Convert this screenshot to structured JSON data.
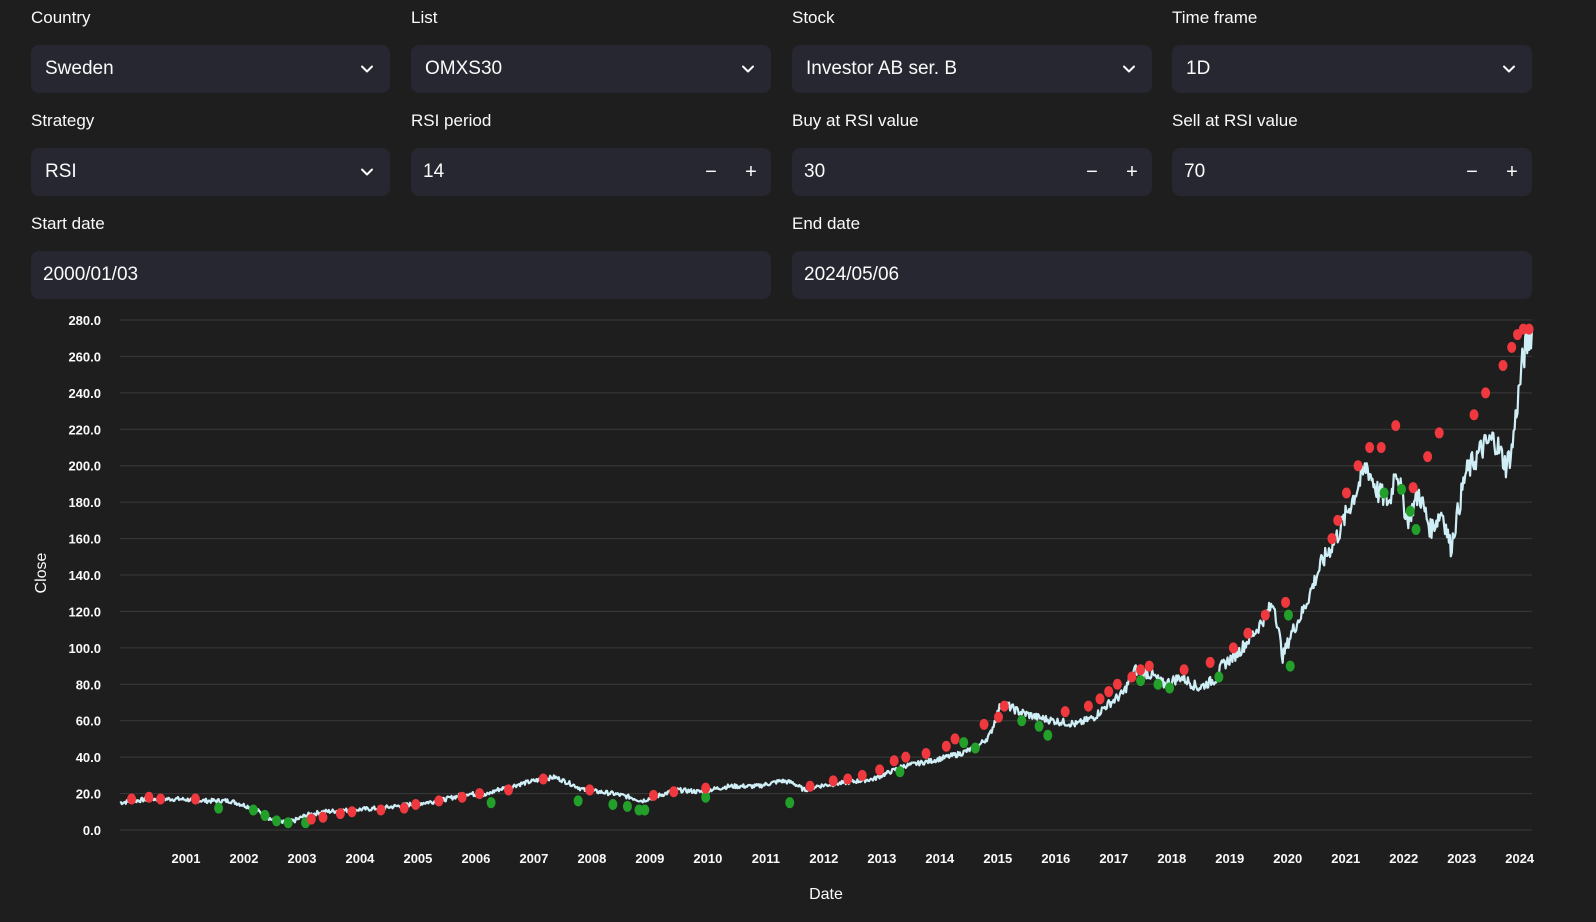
{
  "filters": {
    "country": {
      "label": "Country",
      "value": "Sweden"
    },
    "list": {
      "label": "List",
      "value": "OMXS30"
    },
    "stock": {
      "label": "Stock",
      "value": "Investor AB ser. B"
    },
    "timeframe": {
      "label": "Time frame",
      "value": "1D"
    },
    "strategy": {
      "label": "Strategy",
      "value": "RSI"
    },
    "rsi_period": {
      "label": "RSI period",
      "value": "14"
    },
    "buy_rsi": {
      "label": "Buy at RSI value",
      "value": "30"
    },
    "sell_rsi": {
      "label": "Sell at RSI value",
      "value": "70"
    },
    "start_date": {
      "label": "Start date",
      "value": "2000/01/03"
    },
    "end_date": {
      "label": "End date",
      "value": "2024/05/06"
    },
    "minus_symbol": "−",
    "plus_symbol": "+"
  },
  "colors": {
    "background": "#1e1e1e",
    "input_bg": "#262730",
    "line": "#cfeef5",
    "buy": "#22a02a",
    "sell": "#f0393e",
    "grid": "#3a3a3a"
  },
  "chart_data": {
    "type": "line",
    "title": "",
    "xlabel": "Date",
    "ylabel": "Close",
    "xlim": [
      2000.0,
      2024.35
    ],
    "ylim": [
      0,
      280
    ],
    "yticks": [
      0,
      20,
      40,
      60,
      80,
      100,
      120,
      140,
      160,
      180,
      200,
      220,
      240,
      260,
      280
    ],
    "ytick_labels": [
      "0.0",
      "20.0",
      "40.0",
      "60.0",
      "80.0",
      "100.0",
      "120.0",
      "140.0",
      "160.0",
      "180.0",
      "200.0",
      "220.0",
      "240.0",
      "260.0",
      "280.0"
    ],
    "xticks": [
      2001,
      2002,
      2003,
      2004,
      2005,
      2006,
      2007,
      2008,
      2009,
      2010,
      2011,
      2012,
      2013,
      2014,
      2015,
      2016,
      2017,
      2018,
      2019,
      2020,
      2021,
      2022,
      2023,
      2024
    ],
    "xtick_labels": [
      "2001",
      "2002",
      "2003",
      "2004",
      "2005",
      "2006",
      "2007",
      "2008",
      "2009",
      "2010",
      "2011",
      "2012",
      "2013",
      "2014",
      "2015",
      "2016",
      "2017",
      "2018",
      "2019",
      "2020",
      "2021",
      "2022",
      "2023",
      "2024"
    ],
    "series": [
      {
        "name": "Close",
        "x": [
          2000.0,
          2000.5,
          2001.0,
          2001.5,
          2001.9,
          2002.3,
          2002.6,
          2002.8,
          2003.0,
          2003.2,
          2003.5,
          2004.0,
          2004.5,
          2005.0,
          2005.5,
          2006.0,
          2006.3,
          2006.5,
          2007.0,
          2007.3,
          2007.5,
          2007.8,
          2008.0,
          2008.5,
          2008.8,
          2009.0,
          2009.3,
          2009.6,
          2010.0,
          2010.5,
          2011.0,
          2011.4,
          2011.6,
          2011.8,
          2012.0,
          2012.5,
          2013.0,
          2013.5,
          2014.0,
          2014.5,
          2014.8,
          2015.0,
          2015.2,
          2015.5,
          2015.8,
          2016.1,
          2016.5,
          2016.8,
          2017.0,
          2017.3,
          2017.5,
          2017.8,
          2018.0,
          2018.3,
          2018.6,
          2018.9,
          2019.0,
          2019.3,
          2019.6,
          2019.9,
          2020.05,
          2020.2,
          2020.4,
          2020.7,
          2021.0,
          2021.3,
          2021.5,
          2021.7,
          2021.9,
          2022.0,
          2022.2,
          2022.4,
          2022.6,
          2022.8,
          2022.95,
          2023.2,
          2023.5,
          2023.7,
          2023.9,
          2024.0,
          2024.1,
          2024.2,
          2024.35
        ],
        "values": [
          15,
          17,
          17,
          16,
          16,
          12,
          6,
          4,
          5,
          8,
          10,
          11,
          12,
          14,
          16,
          20,
          19,
          22,
          26,
          28,
          29,
          25,
          22,
          20,
          18,
          16,
          19,
          22,
          21,
          24,
          24,
          27,
          26,
          22,
          24,
          26,
          28,
          35,
          38,
          42,
          46,
          52,
          70,
          65,
          62,
          60,
          58,
          62,
          68,
          75,
          88,
          85,
          80,
          84,
          78,
          83,
          90,
          98,
          110,
          125,
          95,
          108,
          120,
          145,
          162,
          185,
          200,
          185,
          180,
          200,
          170,
          185,
          165,
          175,
          155,
          195,
          210,
          215,
          200,
          208,
          235,
          260,
          275
        ]
      }
    ],
    "buy_signals": {
      "name": "Buy",
      "x": [
        2001.7,
        2002.3,
        2002.5,
        2002.7,
        2002.9,
        2003.2,
        2006.4,
        2007.9,
        2008.5,
        2008.75,
        2008.95,
        2009.05,
        2010.1,
        2011.55,
        2013.45,
        2014.55,
        2014.75,
        2015.55,
        2015.85,
        2016.0,
        2017.6,
        2017.9,
        2018.1,
        2018.95,
        2020.15,
        2020.18,
        2021.8,
        2022.1,
        2022.25,
        2022.35
      ],
      "values": [
        12,
        11,
        8,
        5,
        4,
        4,
        15,
        16,
        14,
        13,
        11,
        11,
        18,
        15,
        32,
        48,
        45,
        60,
        57,
        52,
        82,
        80,
        78,
        84,
        118,
        90,
        185,
        187,
        175,
        165
      ]
    },
    "sell_signals": {
      "name": "Sell",
      "x": [
        2000.2,
        2000.5,
        2000.7,
        2001.3,
        2003.3,
        2003.5,
        2003.8,
        2004.0,
        2004.5,
        2004.9,
        2005.1,
        2005.5,
        2005.9,
        2006.2,
        2006.7,
        2007.3,
        2008.1,
        2009.2,
        2009.55,
        2010.1,
        2011.9,
        2012.3,
        2012.55,
        2012.8,
        2013.1,
        2013.35,
        2013.55,
        2013.9,
        2014.25,
        2014.4,
        2014.9,
        2015.15,
        2015.25,
        2016.3,
        2016.7,
        2016.9,
        2017.05,
        2017.2,
        2017.45,
        2017.6,
        2017.75,
        2018.35,
        2018.8,
        2019.2,
        2019.45,
        2019.75,
        2020.1,
        2020.9,
        2021.0,
        2021.15,
        2021.35,
        2021.55,
        2021.75,
        2022.0,
        2022.3,
        2022.55,
        2022.75,
        2023.35,
        2023.55,
        2023.85,
        2024.0,
        2024.1,
        2024.2,
        2024.3
      ],
      "values": [
        17,
        18,
        17,
        17,
        6,
        7,
        9,
        10,
        11,
        12,
        14,
        16,
        18,
        20,
        22,
        28,
        22,
        19,
        21,
        23,
        24,
        27,
        28,
        30,
        33,
        38,
        40,
        42,
        46,
        50,
        58,
        62,
        68,
        65,
        68,
        72,
        76,
        80,
        84,
        88,
        90,
        88,
        92,
        100,
        108,
        118,
        125,
        160,
        170,
        185,
        200,
        210,
        210,
        222,
        188,
        205,
        218,
        228,
        240,
        255,
        265,
        272,
        275,
        275
      ]
    }
  }
}
